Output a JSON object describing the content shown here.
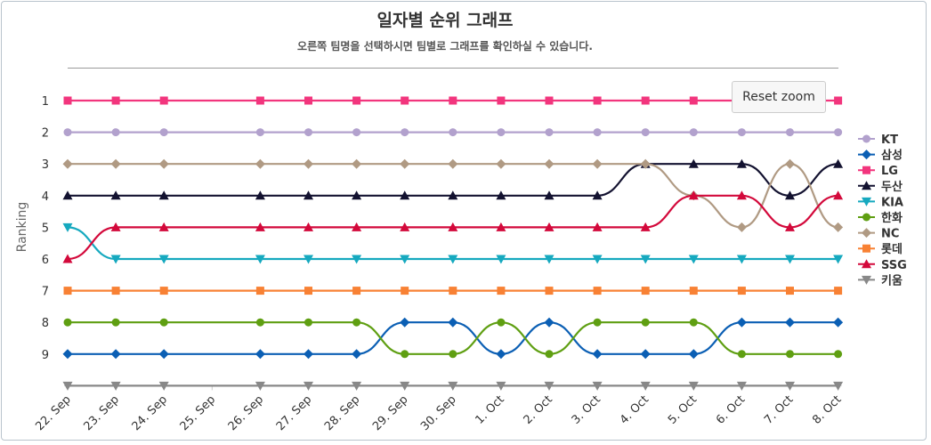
{
  "title": "일자별 순위 그래프",
  "subtitle": "오른쪽 팀명을 선택하시면 팀별로 그래프를 확인하실 수 있습니다.",
  "reset_zoom_label": "Reset zoom",
  "chart_data": {
    "type": "line",
    "title": "일자별 순위 그래프",
    "subtitle": "오른쪽 팀명을 선택하시면 팀별로 그래프를 확인하실 수 있습니다.",
    "ylabel": "Ranking",
    "xlabel": "",
    "y_reversed": true,
    "ylim": [
      1,
      10
    ],
    "y_ticks": [
      1,
      2,
      3,
      4,
      5,
      6,
      7,
      8,
      9
    ],
    "legend_position": "right",
    "grid": false,
    "categories": [
      "22. Sep",
      "23. Sep",
      "24. Sep",
      "25. Sep",
      "26. Sep",
      "27. Sep",
      "28. Sep",
      "29. Sep",
      "30. Sep",
      "1. Oct",
      "2. Oct",
      "3. Oct",
      "4. Oct",
      "5. Oct",
      "6. Oct",
      "7. Oct",
      "8. Oct"
    ],
    "series": [
      {
        "name": "KT",
        "color": "#b2a1cd",
        "marker": "circle",
        "values": [
          2,
          2,
          2,
          null,
          2,
          2,
          2,
          2,
          2,
          2,
          2,
          2,
          2,
          2,
          2,
          2,
          2
        ]
      },
      {
        "name": "삼성",
        "color": "#0b5fb4",
        "marker": "diamond",
        "values": [
          9,
          9,
          9,
          null,
          9,
          9,
          9,
          8,
          8,
          9,
          8,
          9,
          9,
          9,
          8,
          8,
          8
        ]
      },
      {
        "name": "LG",
        "color": "#f2357d",
        "marker": "square",
        "values": [
          1,
          1,
          1,
          null,
          1,
          1,
          1,
          1,
          1,
          1,
          1,
          1,
          1,
          1,
          1,
          1,
          1
        ]
      },
      {
        "name": "두산",
        "color": "#131230",
        "marker": "triangle",
        "values": [
          4,
          4,
          4,
          null,
          4,
          4,
          4,
          4,
          4,
          4,
          4,
          4,
          3,
          3,
          3,
          4,
          3
        ]
      },
      {
        "name": "KIA",
        "color": "#16a9bf",
        "marker": "triangle-down",
        "values": [
          5,
          6,
          6,
          null,
          6,
          6,
          6,
          6,
          6,
          6,
          6,
          6,
          6,
          6,
          6,
          6,
          6
        ]
      },
      {
        "name": "한화",
        "color": "#5f9f12",
        "marker": "circle",
        "values": [
          8,
          8,
          8,
          null,
          8,
          8,
          8,
          9,
          9,
          8,
          9,
          8,
          8,
          8,
          9,
          9,
          9
        ]
      },
      {
        "name": "NC",
        "color": "#b09a83",
        "marker": "diamond",
        "values": [
          3,
          3,
          3,
          null,
          3,
          3,
          3,
          3,
          3,
          3,
          3,
          3,
          3,
          4,
          5,
          3,
          5
        ]
      },
      {
        "name": "롯데",
        "color": "#f88134",
        "marker": "square",
        "values": [
          7,
          7,
          7,
          null,
          7,
          7,
          7,
          7,
          7,
          7,
          7,
          7,
          7,
          7,
          7,
          7,
          7
        ]
      },
      {
        "name": "SSG",
        "color": "#d3093b",
        "marker": "triangle",
        "values": [
          6,
          5,
          5,
          null,
          5,
          5,
          5,
          5,
          5,
          5,
          5,
          5,
          5,
          4,
          4,
          5,
          4
        ]
      },
      {
        "name": "키움",
        "color": "#888888",
        "marker": "triangle-down",
        "values": [
          10,
          10,
          10,
          null,
          10,
          10,
          10,
          10,
          10,
          10,
          10,
          10,
          10,
          10,
          10,
          10,
          10
        ]
      }
    ]
  }
}
